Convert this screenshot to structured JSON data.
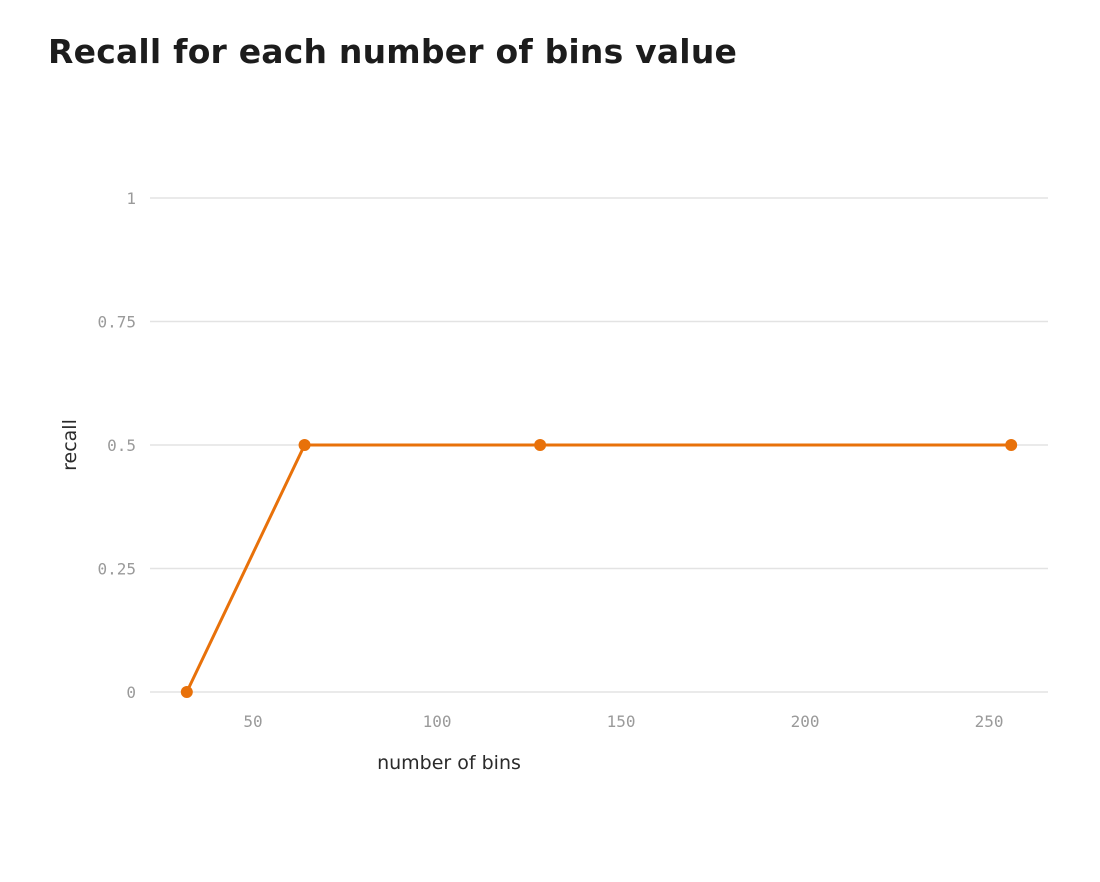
{
  "title": "Recall for each number of bins value",
  "chart_data": {
    "type": "line",
    "title": "Recall for each number of bins value",
    "xlabel": "number of bins",
    "ylabel": "recall",
    "xlim": [
      22,
      266
    ],
    "ylim": [
      0,
      1
    ],
    "x_ticks": [
      50,
      100,
      150,
      200,
      250
    ],
    "y_ticks": [
      0,
      0.25,
      0.5,
      0.75,
      1
    ],
    "x_tick_labels": [
      "50",
      "100",
      "150",
      "200",
      "250"
    ],
    "y_tick_labels": [
      "0",
      "0.25",
      "0.5",
      "0.75",
      "1"
    ],
    "grid": true,
    "series": [
      {
        "x": [
          32,
          64,
          128,
          256
        ],
        "values": [
          0,
          0.5,
          0.5,
          0.5
        ],
        "color": "#e8710a"
      }
    ]
  }
}
